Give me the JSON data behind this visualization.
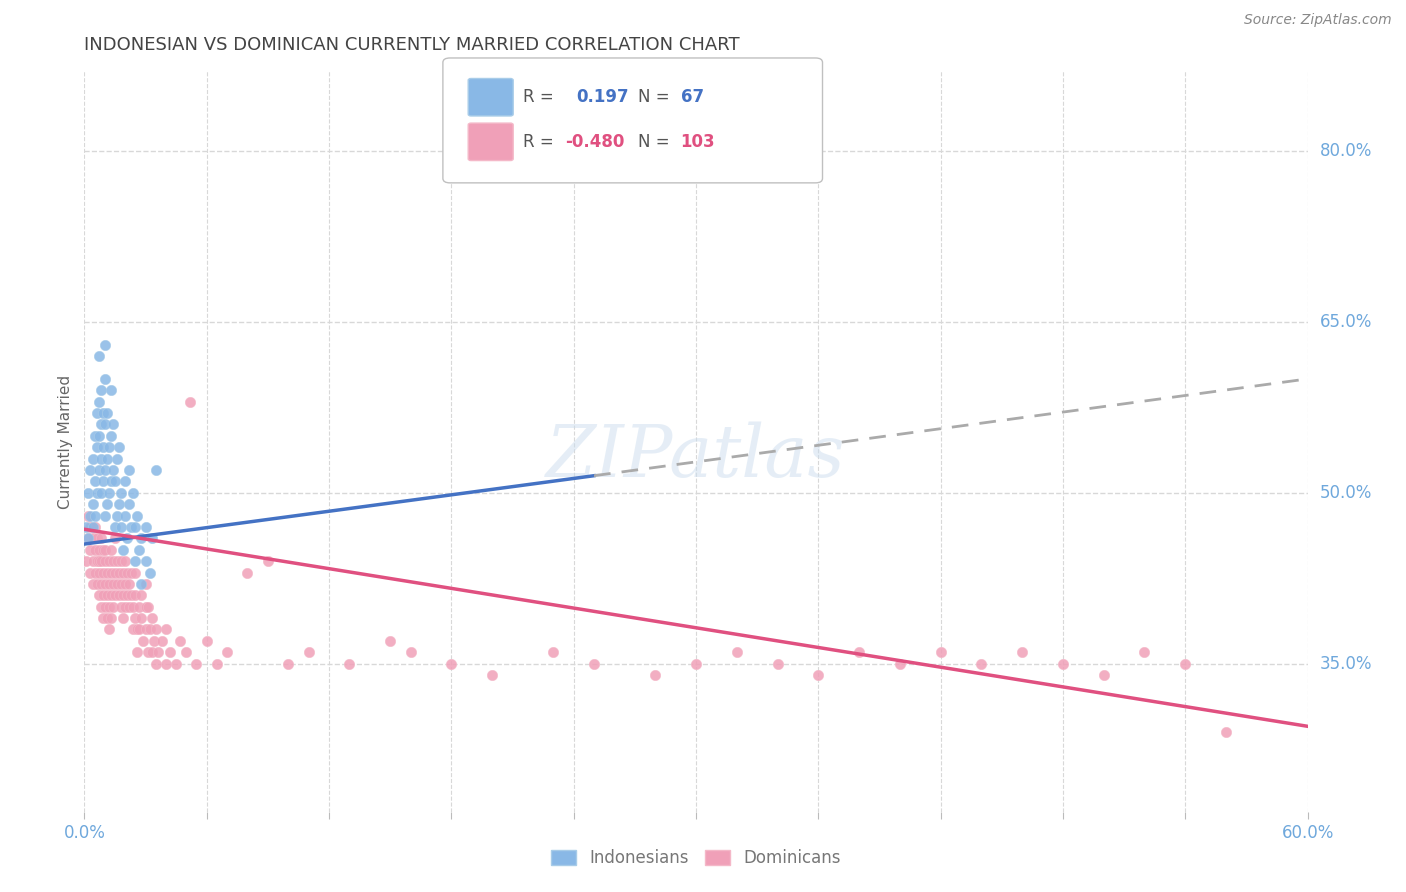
{
  "title": "INDONESIAN VS DOMINICAN CURRENTLY MARRIED CORRELATION CHART",
  "source": "Source: ZipAtlas.com",
  "ylabel": "Currently Married",
  "ytick_labels": [
    "35.0%",
    "50.0%",
    "65.0%",
    "80.0%"
  ],
  "ytick_values": [
    0.35,
    0.5,
    0.65,
    0.8
  ],
  "xmin": 0.0,
  "xmax": 0.6,
  "ymin": 0.22,
  "ymax": 0.87,
  "indonesian_dots": [
    [
      0.001,
      0.47
    ],
    [
      0.002,
      0.46
    ],
    [
      0.002,
      0.5
    ],
    [
      0.003,
      0.48
    ],
    [
      0.003,
      0.52
    ],
    [
      0.004,
      0.49
    ],
    [
      0.004,
      0.47
    ],
    [
      0.004,
      0.53
    ],
    [
      0.005,
      0.51
    ],
    [
      0.005,
      0.55
    ],
    [
      0.005,
      0.48
    ],
    [
      0.006,
      0.5
    ],
    [
      0.006,
      0.54
    ],
    [
      0.006,
      0.57
    ],
    [
      0.007,
      0.52
    ],
    [
      0.007,
      0.55
    ],
    [
      0.007,
      0.58
    ],
    [
      0.007,
      0.62
    ],
    [
      0.008,
      0.5
    ],
    [
      0.008,
      0.53
    ],
    [
      0.008,
      0.56
    ],
    [
      0.008,
      0.59
    ],
    [
      0.009,
      0.51
    ],
    [
      0.009,
      0.54
    ],
    [
      0.009,
      0.57
    ],
    [
      0.01,
      0.48
    ],
    [
      0.01,
      0.52
    ],
    [
      0.01,
      0.56
    ],
    [
      0.01,
      0.6
    ],
    [
      0.01,
      0.63
    ],
    [
      0.011,
      0.49
    ],
    [
      0.011,
      0.53
    ],
    [
      0.011,
      0.57
    ],
    [
      0.012,
      0.5
    ],
    [
      0.012,
      0.54
    ],
    [
      0.013,
      0.51
    ],
    [
      0.013,
      0.55
    ],
    [
      0.013,
      0.59
    ],
    [
      0.014,
      0.52
    ],
    [
      0.014,
      0.56
    ],
    [
      0.015,
      0.47
    ],
    [
      0.015,
      0.51
    ],
    [
      0.016,
      0.48
    ],
    [
      0.016,
      0.53
    ],
    [
      0.017,
      0.49
    ],
    [
      0.017,
      0.54
    ],
    [
      0.018,
      0.47
    ],
    [
      0.018,
      0.5
    ],
    [
      0.019,
      0.45
    ],
    [
      0.02,
      0.48
    ],
    [
      0.02,
      0.51
    ],
    [
      0.021,
      0.46
    ],
    [
      0.022,
      0.49
    ],
    [
      0.022,
      0.52
    ],
    [
      0.023,
      0.47
    ],
    [
      0.024,
      0.5
    ],
    [
      0.025,
      0.44
    ],
    [
      0.025,
      0.47
    ],
    [
      0.026,
      0.48
    ],
    [
      0.027,
      0.45
    ],
    [
      0.028,
      0.42
    ],
    [
      0.028,
      0.46
    ],
    [
      0.03,
      0.44
    ],
    [
      0.03,
      0.47
    ],
    [
      0.032,
      0.43
    ],
    [
      0.033,
      0.46
    ],
    [
      0.035,
      0.52
    ]
  ],
  "dominican_dots": [
    [
      0.001,
      0.44
    ],
    [
      0.002,
      0.46
    ],
    [
      0.002,
      0.48
    ],
    [
      0.003,
      0.45
    ],
    [
      0.003,
      0.47
    ],
    [
      0.003,
      0.43
    ],
    [
      0.004,
      0.46
    ],
    [
      0.004,
      0.44
    ],
    [
      0.004,
      0.42
    ],
    [
      0.005,
      0.47
    ],
    [
      0.005,
      0.45
    ],
    [
      0.005,
      0.43
    ],
    [
      0.006,
      0.46
    ],
    [
      0.006,
      0.44
    ],
    [
      0.006,
      0.42
    ],
    [
      0.007,
      0.45
    ],
    [
      0.007,
      0.43
    ],
    [
      0.007,
      0.41
    ],
    [
      0.007,
      0.44
    ],
    [
      0.008,
      0.46
    ],
    [
      0.008,
      0.44
    ],
    [
      0.008,
      0.42
    ],
    [
      0.008,
      0.4
    ],
    [
      0.009,
      0.45
    ],
    [
      0.009,
      0.43
    ],
    [
      0.009,
      0.41
    ],
    [
      0.009,
      0.39
    ],
    [
      0.01,
      0.44
    ],
    [
      0.01,
      0.42
    ],
    [
      0.01,
      0.4
    ],
    [
      0.01,
      0.45
    ],
    [
      0.011,
      0.43
    ],
    [
      0.011,
      0.41
    ],
    [
      0.011,
      0.39
    ],
    [
      0.012,
      0.44
    ],
    [
      0.012,
      0.42
    ],
    [
      0.012,
      0.4
    ],
    [
      0.012,
      0.38
    ],
    [
      0.013,
      0.45
    ],
    [
      0.013,
      0.43
    ],
    [
      0.013,
      0.41
    ],
    [
      0.013,
      0.39
    ],
    [
      0.014,
      0.44
    ],
    [
      0.014,
      0.42
    ],
    [
      0.014,
      0.4
    ],
    [
      0.015,
      0.43
    ],
    [
      0.015,
      0.41
    ],
    [
      0.015,
      0.46
    ],
    [
      0.016,
      0.44
    ],
    [
      0.016,
      0.42
    ],
    [
      0.017,
      0.43
    ],
    [
      0.017,
      0.41
    ],
    [
      0.018,
      0.44
    ],
    [
      0.018,
      0.42
    ],
    [
      0.018,
      0.4
    ],
    [
      0.019,
      0.43
    ],
    [
      0.019,
      0.41
    ],
    [
      0.019,
      0.39
    ],
    [
      0.02,
      0.44
    ],
    [
      0.02,
      0.42
    ],
    [
      0.02,
      0.4
    ],
    [
      0.021,
      0.43
    ],
    [
      0.021,
      0.41
    ],
    [
      0.022,
      0.42
    ],
    [
      0.022,
      0.4
    ],
    [
      0.023,
      0.43
    ],
    [
      0.023,
      0.41
    ],
    [
      0.024,
      0.4
    ],
    [
      0.024,
      0.38
    ],
    [
      0.025,
      0.43
    ],
    [
      0.025,
      0.41
    ],
    [
      0.025,
      0.39
    ],
    [
      0.026,
      0.38
    ],
    [
      0.026,
      0.36
    ],
    [
      0.027,
      0.4
    ],
    [
      0.027,
      0.38
    ],
    [
      0.028,
      0.41
    ],
    [
      0.028,
      0.39
    ],
    [
      0.029,
      0.37
    ],
    [
      0.03,
      0.42
    ],
    [
      0.03,
      0.4
    ],
    [
      0.03,
      0.38
    ],
    [
      0.031,
      0.36
    ],
    [
      0.031,
      0.4
    ],
    [
      0.032,
      0.38
    ],
    [
      0.033,
      0.36
    ],
    [
      0.033,
      0.39
    ],
    [
      0.034,
      0.37
    ],
    [
      0.035,
      0.35
    ],
    [
      0.035,
      0.38
    ],
    [
      0.036,
      0.36
    ],
    [
      0.038,
      0.37
    ],
    [
      0.04,
      0.35
    ],
    [
      0.04,
      0.38
    ],
    [
      0.042,
      0.36
    ],
    [
      0.045,
      0.35
    ],
    [
      0.047,
      0.37
    ],
    [
      0.05,
      0.36
    ],
    [
      0.052,
      0.58
    ],
    [
      0.055,
      0.35
    ],
    [
      0.06,
      0.37
    ],
    [
      0.065,
      0.35
    ],
    [
      0.07,
      0.36
    ],
    [
      0.08,
      0.43
    ],
    [
      0.09,
      0.44
    ],
    [
      0.1,
      0.35
    ],
    [
      0.11,
      0.36
    ],
    [
      0.13,
      0.35
    ],
    [
      0.15,
      0.37
    ],
    [
      0.16,
      0.36
    ],
    [
      0.18,
      0.35
    ],
    [
      0.2,
      0.34
    ],
    [
      0.23,
      0.36
    ],
    [
      0.25,
      0.35
    ],
    [
      0.28,
      0.34
    ],
    [
      0.3,
      0.35
    ],
    [
      0.32,
      0.36
    ],
    [
      0.34,
      0.35
    ],
    [
      0.36,
      0.34
    ],
    [
      0.38,
      0.36
    ],
    [
      0.4,
      0.35
    ],
    [
      0.42,
      0.36
    ],
    [
      0.44,
      0.35
    ],
    [
      0.46,
      0.36
    ],
    [
      0.48,
      0.35
    ],
    [
      0.5,
      0.34
    ],
    [
      0.52,
      0.36
    ],
    [
      0.54,
      0.35
    ],
    [
      0.56,
      0.29
    ]
  ],
  "blue_solid_line": {
    "x0": 0.0,
    "y0": 0.455,
    "x1": 0.25,
    "y1": 0.515
  },
  "blue_dash_line": {
    "x0": 0.25,
    "y0": 0.515,
    "x1": 0.6,
    "y1": 0.6
  },
  "pink_line": {
    "x0": 0.0,
    "y0": 0.468,
    "x1": 0.6,
    "y1": 0.295
  },
  "background_color": "#ffffff",
  "grid_color": "#d8d8d8",
  "dot_size": 55,
  "blue_color": "#89b8e6",
  "blue_edge_color": "#a8cce8",
  "pink_color": "#f0a0b8",
  "pink_edge_color": "#f4b8c8",
  "pink_line_color": "#e05080",
  "title_color": "#444444",
  "axis_tick_color": "#6fa8dc",
  "watermark": "ZIPatlas"
}
